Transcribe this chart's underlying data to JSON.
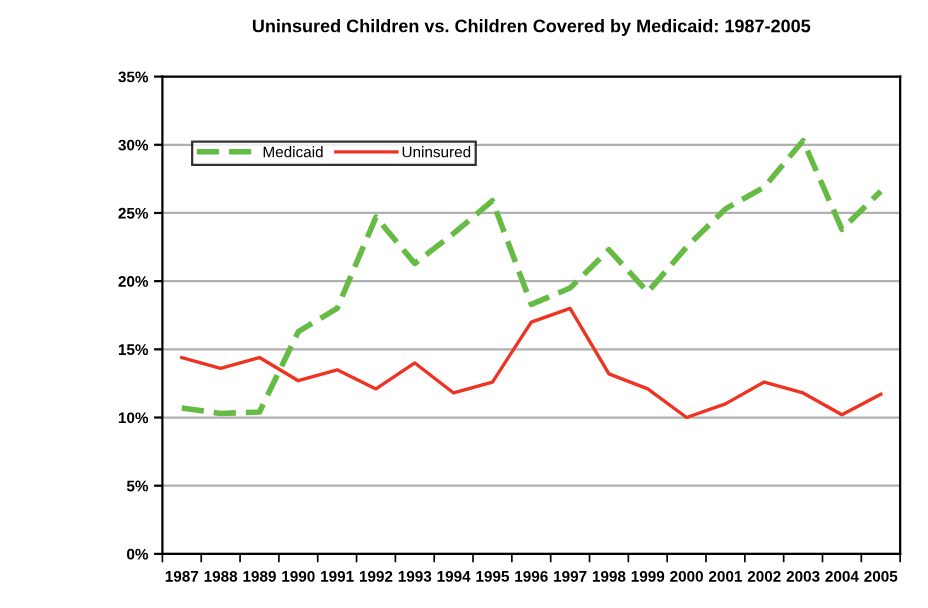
{
  "chart_data": {
    "type": "line",
    "title": "Uninsured Children vs. Children Covered by Medicaid: 1987-2005",
    "categories": [
      "1987",
      "1988",
      "1989",
      "1990",
      "1991",
      "1992",
      "1993",
      "1994",
      "1995",
      "1996",
      "1997",
      "1998",
      "1999",
      "2000",
      "2001",
      "2002",
      "2003",
      "2004",
      "2005"
    ],
    "series": [
      {
        "name": "Medicaid",
        "color": "#66bb44",
        "line_style": "dashed",
        "values": [
          10.7,
          10.3,
          10.4,
          16.3,
          18.0,
          24.7,
          21.3,
          23.5,
          25.9,
          18.3,
          19.5,
          22.3,
          19.2,
          22.5,
          25.3,
          26.9,
          30.3,
          23.8,
          26.6
        ]
      },
      {
        "name": "Uninsured",
        "color": "#ee3322",
        "line_style": "solid",
        "values": [
          14.4,
          13.6,
          14.4,
          12.7,
          13.5,
          12.1,
          14.0,
          11.8,
          12.6,
          17.0,
          18.0,
          13.2,
          12.1,
          10.0,
          11.0,
          12.6,
          11.8,
          10.2,
          11.7
        ]
      }
    ],
    "ylim": [
      0,
      35
    ],
    "yticks": [
      {
        "value": 0,
        "label": "0%"
      },
      {
        "value": 5,
        "label": "5%"
      },
      {
        "value": 10,
        "label": "10%"
      },
      {
        "value": 15,
        "label": "15%"
      },
      {
        "value": 20,
        "label": "20%"
      },
      {
        "value": 25,
        "label": "25%"
      },
      {
        "value": 30,
        "label": "30%"
      },
      {
        "value": 35,
        "label": "35%"
      }
    ],
    "grid": "y",
    "legend": "top left",
    "marker": "none"
  }
}
